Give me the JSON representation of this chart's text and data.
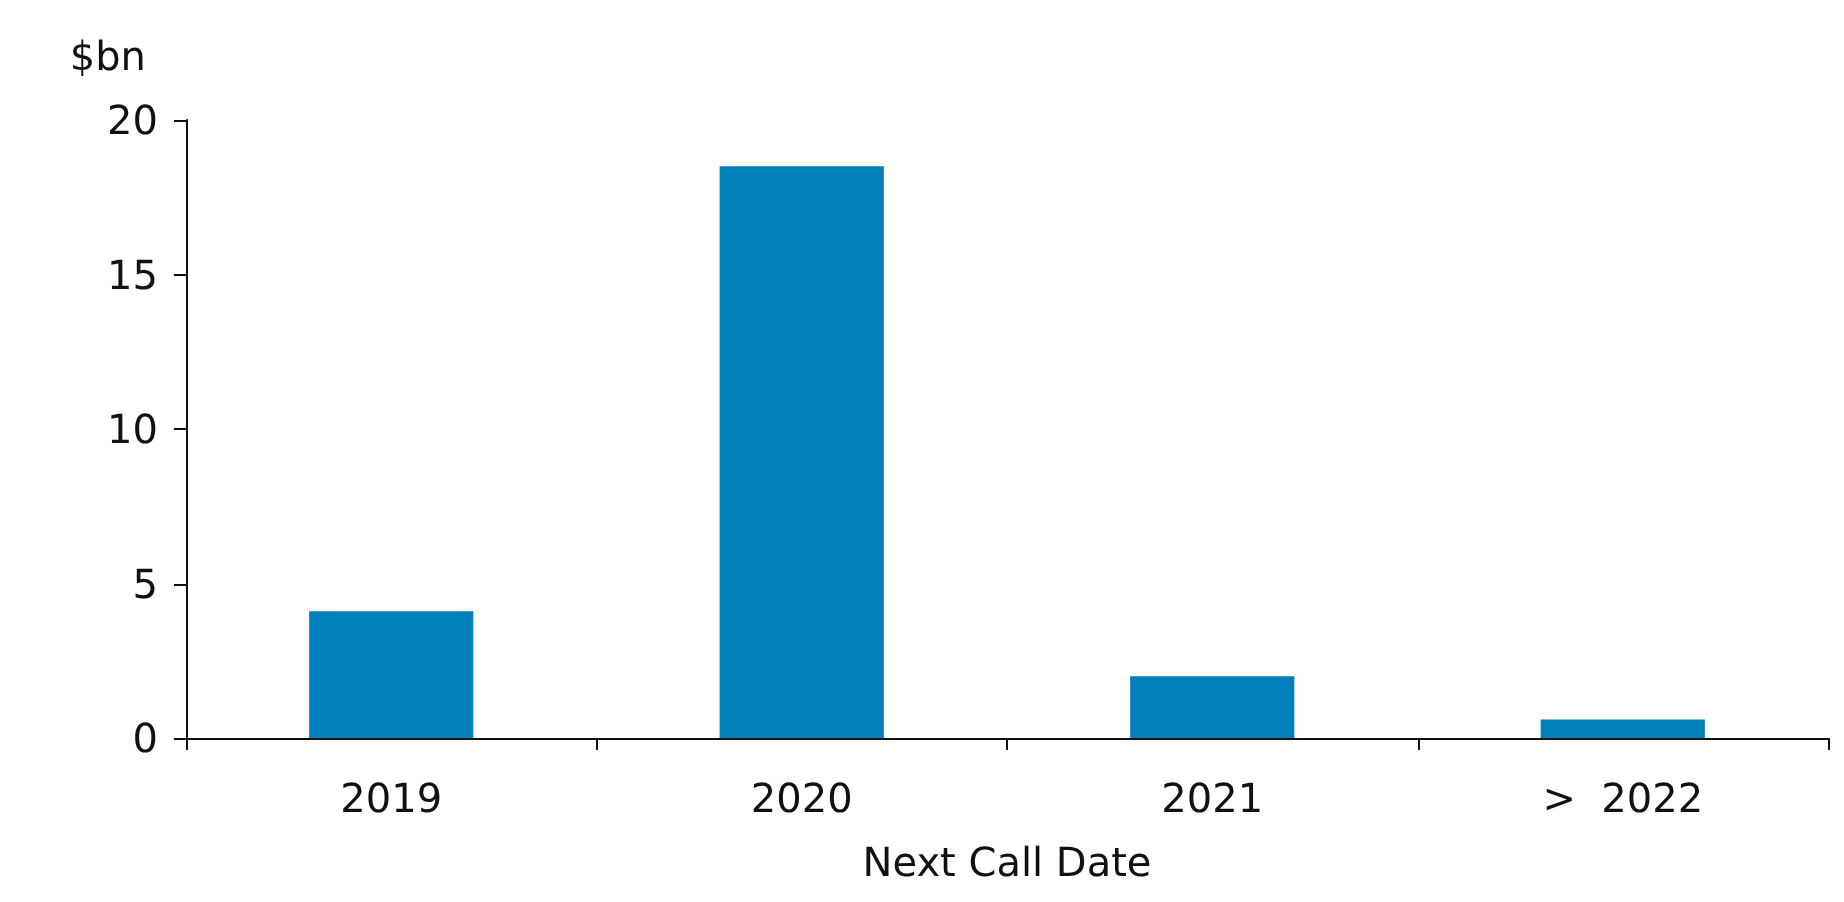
{
  "chart_data": {
    "type": "bar",
    "ylabel": "$bn",
    "xlabel": "Next Call Date",
    "categories": [
      "2019",
      "2020",
      "2021",
      ">  2022"
    ],
    "values": [
      4.1,
      18.5,
      2.0,
      0.6
    ],
    "color": "#0080b8",
    "ylim": [
      0,
      20
    ],
    "yticks": [
      0,
      5,
      10,
      15,
      20
    ],
    "grid": false
  }
}
